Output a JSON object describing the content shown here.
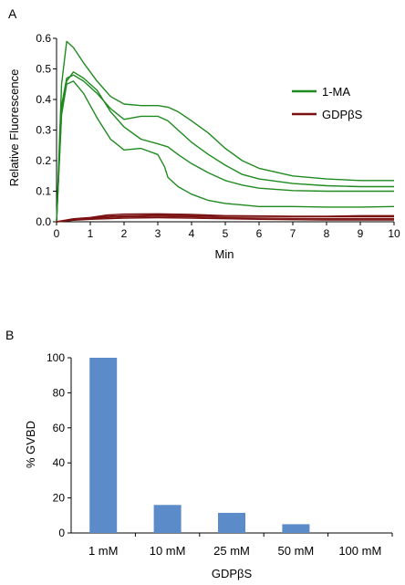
{
  "chart_data": [
    {
      "panel_label": "A",
      "type": "line",
      "xlabel": "Min",
      "ylabel": "Relative Fluorescence",
      "xlim": [
        0,
        10
      ],
      "ylim": [
        0,
        0.6
      ],
      "x_ticks": [
        "0",
        "1",
        "2",
        "3",
        "4",
        "5",
        "6",
        "7",
        "8",
        "9",
        "10"
      ],
      "y_ticks": [
        "0.0",
        "0.1",
        "0.2",
        "0.3",
        "0.4",
        "0.5",
        "0.6"
      ],
      "grid": false,
      "legend_position": "right",
      "legend": [
        {
          "label": "1-MA",
          "color": "#1f8a1f"
        },
        {
          "label": "GDPβS",
          "color": "#7a1010"
        }
      ],
      "series": [
        {
          "group": "1-MA",
          "color": "#1f8a1f",
          "x": [
            0,
            0.15,
            0.3,
            0.5,
            0.8,
            1.2,
            1.6,
            2.0,
            2.5,
            3.0,
            3.3,
            3.6,
            4.0,
            4.5,
            5.0,
            5.5,
            6.0,
            7.0,
            8.0,
            9.0,
            10.0
          ],
          "y": [
            0.0,
            0.45,
            0.59,
            0.57,
            0.52,
            0.46,
            0.41,
            0.385,
            0.38,
            0.38,
            0.375,
            0.36,
            0.33,
            0.29,
            0.24,
            0.2,
            0.175,
            0.15,
            0.14,
            0.135,
            0.135
          ]
        },
        {
          "group": "1-MA",
          "color": "#1f8a1f",
          "x": [
            0,
            0.15,
            0.3,
            0.5,
            0.8,
            1.2,
            1.6,
            2.0,
            2.5,
            3.0,
            3.3,
            3.6,
            4.0,
            4.5,
            5.0,
            5.5,
            6.0,
            7.0,
            8.0,
            9.0,
            10.0
          ],
          "y": [
            0.0,
            0.38,
            0.47,
            0.48,
            0.46,
            0.42,
            0.37,
            0.335,
            0.345,
            0.345,
            0.33,
            0.3,
            0.26,
            0.22,
            0.185,
            0.155,
            0.14,
            0.125,
            0.118,
            0.115,
            0.115
          ]
        },
        {
          "group": "1-MA",
          "color": "#1f8a1f",
          "x": [
            0,
            0.15,
            0.3,
            0.5,
            0.8,
            1.2,
            1.6,
            2.0,
            2.5,
            3.0,
            3.3,
            3.6,
            4.0,
            4.5,
            5.0,
            5.5,
            6.0,
            7.0,
            8.0,
            9.0,
            10.0
          ],
          "y": [
            0.0,
            0.36,
            0.46,
            0.49,
            0.47,
            0.43,
            0.36,
            0.31,
            0.27,
            0.255,
            0.245,
            0.22,
            0.19,
            0.16,
            0.135,
            0.12,
            0.11,
            0.102,
            0.1,
            0.1,
            0.1
          ]
        },
        {
          "group": "1-MA",
          "color": "#1f8a1f",
          "x": [
            0,
            0.15,
            0.3,
            0.5,
            0.8,
            1.2,
            1.6,
            2.0,
            2.5,
            3.0,
            3.2,
            3.3,
            3.6,
            4.0,
            4.5,
            5.0,
            5.5,
            6.0,
            7.0,
            8.0,
            9.0,
            10.0
          ],
          "y": [
            0.0,
            0.35,
            0.45,
            0.46,
            0.42,
            0.34,
            0.27,
            0.235,
            0.24,
            0.22,
            0.18,
            0.145,
            0.115,
            0.09,
            0.07,
            0.06,
            0.055,
            0.05,
            0.05,
            0.048,
            0.048,
            0.05
          ]
        },
        {
          "group": "GDPβS",
          "color": "#7a1010",
          "x": [
            0,
            0.5,
            1.0,
            1.5,
            2.0,
            3.0,
            4.0,
            5.0,
            6.0,
            7.0,
            8.0,
            9.0,
            10.0
          ],
          "y": [
            0.0,
            0.008,
            0.012,
            0.018,
            0.02,
            0.022,
            0.02,
            0.018,
            0.018,
            0.017,
            0.016,
            0.016,
            0.016
          ]
        },
        {
          "group": "GDPβS",
          "color": "#7a1010",
          "x": [
            0,
            0.5,
            1.0,
            1.5,
            2.0,
            3.0,
            4.0,
            5.0,
            6.0,
            7.0,
            8.0,
            9.0,
            10.0
          ],
          "y": [
            0.0,
            0.01,
            0.014,
            0.022,
            0.025,
            0.026,
            0.024,
            0.02,
            0.019,
            0.018,
            0.018,
            0.02,
            0.02
          ]
        },
        {
          "group": "GDPβS",
          "color": "#7a1010",
          "x": [
            0,
            0.5,
            1.0,
            1.5,
            2.0,
            3.0,
            4.0,
            5.0,
            6.0,
            7.0,
            8.0,
            9.0,
            10.0
          ],
          "y": [
            0.0,
            0.006,
            0.01,
            0.014,
            0.016,
            0.018,
            0.016,
            0.013,
            0.012,
            0.011,
            0.01,
            0.01,
            0.01
          ]
        },
        {
          "group": "GDPβS",
          "color": "#7a1010",
          "x": [
            0,
            0.5,
            1.0,
            1.5,
            2.0,
            3.0,
            4.0,
            5.0,
            6.0,
            7.0,
            8.0,
            9.0,
            10.0
          ],
          "y": [
            0.0,
            0.005,
            0.008,
            0.01,
            0.012,
            0.013,
            0.012,
            0.01,
            0.008,
            0.007,
            0.006,
            0.006,
            0.006
          ]
        }
      ]
    },
    {
      "panel_label": "B",
      "type": "bar",
      "xlabel": "GDPβS",
      "ylabel": "% GVBD",
      "ylim": [
        0,
        100
      ],
      "y_ticks": [
        "0",
        "20",
        "40",
        "60",
        "80",
        "100"
      ],
      "grid": false,
      "bar_color": "#5b8bc9",
      "categories": [
        "1 mM",
        "10 mM",
        "25 mM",
        "50 mM",
        "100 mM"
      ],
      "values": [
        100,
        16,
        11.5,
        5,
        0
      ]
    }
  ]
}
